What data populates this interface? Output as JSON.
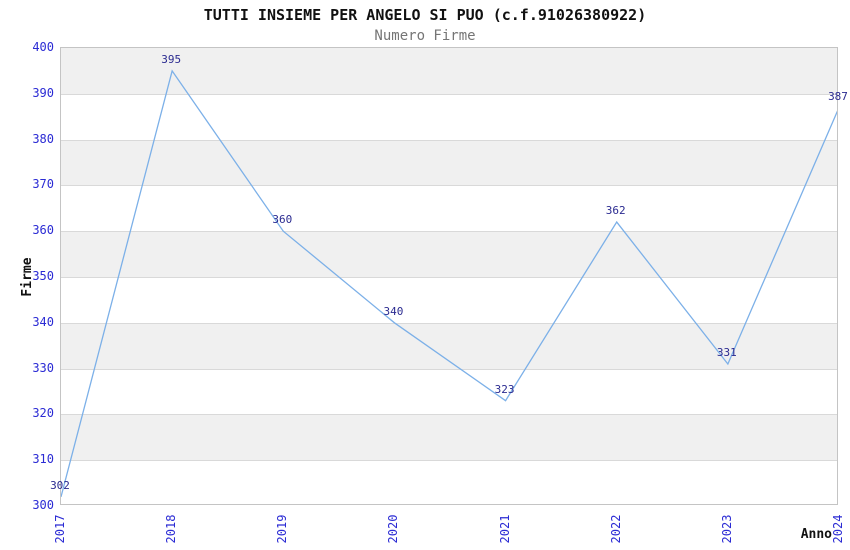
{
  "chart_data": {
    "type": "line",
    "title": "TUTTI INSIEME PER ANGELO SI PUO (c.f.91026380922)",
    "subtitle": "Numero Firme",
    "xlabel": "Anno",
    "ylabel": "Firme",
    "categories": [
      "2017",
      "2018",
      "2019",
      "2020",
      "2021",
      "2022",
      "2023",
      "2024"
    ],
    "values": [
      302,
      395,
      360,
      340,
      323,
      362,
      331,
      387
    ],
    "ylim": [
      300,
      400
    ],
    "yticks": [
      300,
      310,
      320,
      330,
      340,
      350,
      360,
      370,
      380,
      390,
      400
    ],
    "grid": true,
    "legend_position": "none",
    "colors": {
      "line": "#7cb0e8",
      "tick_label": "#2b2bd4",
      "data_label": "#2a2a90",
      "band": "#f0f0f0",
      "grid": "#d9d9d9",
      "plot_border": "#c4c4c4",
      "subtitle": "#757575",
      "title": "#111111"
    }
  }
}
